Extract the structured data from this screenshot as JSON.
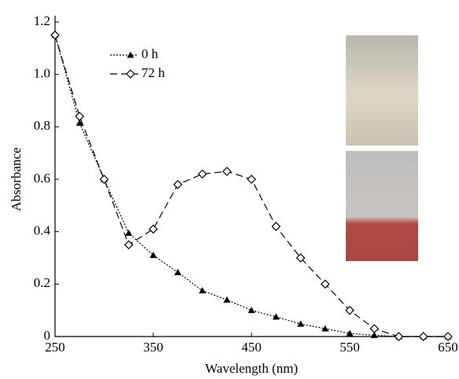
{
  "chart_data": {
    "type": "line",
    "x_label": "Wavelength (nm)",
    "y_label": "Absorbance",
    "xlim": [
      250,
      650
    ],
    "ylim": [
      0,
      1.2
    ],
    "xticks": [
      250,
      350,
      450,
      550,
      650
    ],
    "yticks": [
      0,
      0.2,
      0.4,
      0.6,
      0.8,
      {
        "value": 1,
        "label": "1.0"
      },
      1.2
    ],
    "x": [
      250,
      275,
      300,
      325,
      350,
      375,
      400,
      425,
      450,
      475,
      500,
      525,
      550,
      575,
      600,
      625,
      650
    ],
    "series": [
      {
        "name": "0 h",
        "color": "#000000",
        "dash": "dotted",
        "marker": "triangle",
        "values": [
          1.15,
          0.815,
          0.6,
          0.395,
          0.31,
          0.245,
          0.175,
          0.14,
          0.1,
          0.075,
          0.048,
          0.03,
          0.012,
          0.005,
          0,
          0,
          0
        ]
      },
      {
        "name": "72 h",
        "color": "#000000",
        "dash": "dashed",
        "marker": "diamond",
        "values": [
          1.15,
          0.84,
          0.6,
          0.35,
          0.41,
          0.58,
          0.62,
          0.63,
          0.6,
          0.42,
          0.3,
          0.2,
          0.1,
          0.03,
          0,
          0,
          0
        ]
      }
    ],
    "legend": "upper left"
  }
}
